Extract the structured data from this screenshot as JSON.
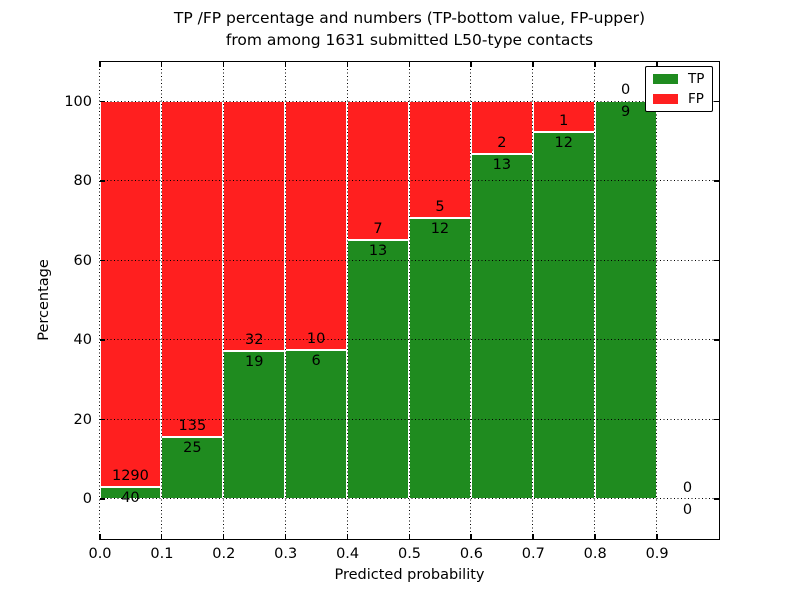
{
  "figure": {
    "title_line1": "TP /FP percentage and numbers (TP-bottom value, FP-upper)",
    "title_line2": "from among 1631 submitted L50-type contacts"
  },
  "chart_data": {
    "type": "bar",
    "stacked": true,
    "normalized": "percent",
    "title": "TP /FP percentage and numbers (TP-bottom value, FP-upper)\nfrom among 1631 submitted L50-type contacts",
    "xlabel": "Predicted probability",
    "ylabel": "Percentage",
    "xlim": [
      0.0,
      1.0
    ],
    "ylim": [
      -10,
      110
    ],
    "grid": true,
    "total_contacts": 1631,
    "xticks": [
      {
        "v": 0.0,
        "label": "0.0"
      },
      {
        "v": 0.1,
        "label": "0.1"
      },
      {
        "v": 0.2,
        "label": "0.2"
      },
      {
        "v": 0.3,
        "label": "0.3"
      },
      {
        "v": 0.4,
        "label": "0.4"
      },
      {
        "v": 0.5,
        "label": "0.5"
      },
      {
        "v": 0.6,
        "label": "0.6"
      },
      {
        "v": 0.7,
        "label": "0.7"
      },
      {
        "v": 0.8,
        "label": "0.8"
      },
      {
        "v": 0.9,
        "label": "0.9"
      }
    ],
    "yticks": [
      {
        "v": 0,
        "label": "0"
      },
      {
        "v": 20,
        "label": "20"
      },
      {
        "v": 40,
        "label": "40"
      },
      {
        "v": 60,
        "label": "60"
      },
      {
        "v": 80,
        "label": "80"
      },
      {
        "v": 100,
        "label": "100"
      }
    ],
    "legend": {
      "position": "upper right",
      "entries": [
        {
          "label": "TP",
          "color": "#1f8b1f"
        },
        {
          "label": "FP",
          "color": "#ff1f1f"
        }
      ]
    },
    "series": [
      {
        "name": "TP",
        "color": "#1f8b1f",
        "counts": [
          40,
          25,
          19,
          6,
          13,
          12,
          13,
          12,
          9,
          0
        ]
      },
      {
        "name": "FP",
        "color": "#ff1f1f",
        "counts": [
          1290,
          135,
          32,
          10,
          7,
          5,
          2,
          1,
          0,
          0
        ]
      }
    ],
    "bins": [
      {
        "range": [
          0.0,
          0.1
        ],
        "tp": 40,
        "fp": 1290
      },
      {
        "range": [
          0.1,
          0.2
        ],
        "tp": 25,
        "fp": 135
      },
      {
        "range": [
          0.2,
          0.3
        ],
        "tp": 19,
        "fp": 32
      },
      {
        "range": [
          0.3,
          0.4
        ],
        "tp": 6,
        "fp": 10
      },
      {
        "range": [
          0.4,
          0.5
        ],
        "tp": 13,
        "fp": 7
      },
      {
        "range": [
          0.5,
          0.6
        ],
        "tp": 12,
        "fp": 5
      },
      {
        "range": [
          0.6,
          0.7
        ],
        "tp": 13,
        "fp": 2
      },
      {
        "range": [
          0.7,
          0.8
        ],
        "tp": 12,
        "fp": 1
      },
      {
        "range": [
          0.8,
          0.9
        ],
        "tp": 9,
        "fp": 0
      },
      {
        "range": [
          0.9,
          1.0
        ],
        "tp": 0,
        "fp": 0
      }
    ]
  }
}
